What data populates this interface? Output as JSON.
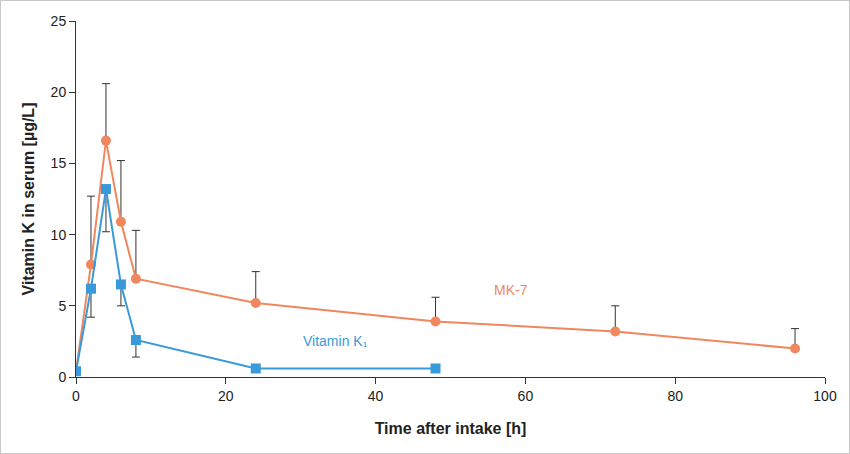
{
  "chart_data": {
    "type": "line",
    "x_label": "Time after intake [h]",
    "y_label": "Vitamin K in serum [µg/L]",
    "xlim": [
      0,
      100
    ],
    "xticks": [
      0,
      20,
      40,
      60,
      80,
      100
    ],
    "ylim": [
      0,
      25
    ],
    "yticks": [
      0,
      5,
      10,
      15,
      20,
      25
    ],
    "grid": false,
    "series": [
      {
        "name": "MK-7",
        "color": "#f0875f",
        "marker": "circle",
        "line_style": "solid",
        "x": [
          0,
          2,
          4,
          6,
          8,
          24,
          48,
          72,
          96
        ],
        "values": [
          0.4,
          7.9,
          16.6,
          10.9,
          6.9,
          5.2,
          3.9,
          3.2,
          2.0
        ],
        "error_plus": [
          null,
          4.8,
          4.0,
          4.3,
          3.4,
          2.2,
          1.7,
          1.8,
          1.4
        ]
      },
      {
        "name": "Vitamin K₁",
        "color": "#3a9ad9",
        "marker": "square",
        "line_style": "solid",
        "x": [
          0,
          2,
          4,
          6,
          8,
          24,
          48
        ],
        "values": [
          0.4,
          6.2,
          13.2,
          6.5,
          2.6,
          0.6,
          0.6
        ],
        "error_minus": [
          null,
          2.0,
          3.0,
          1.5,
          1.2,
          null,
          null
        ]
      }
    ]
  }
}
